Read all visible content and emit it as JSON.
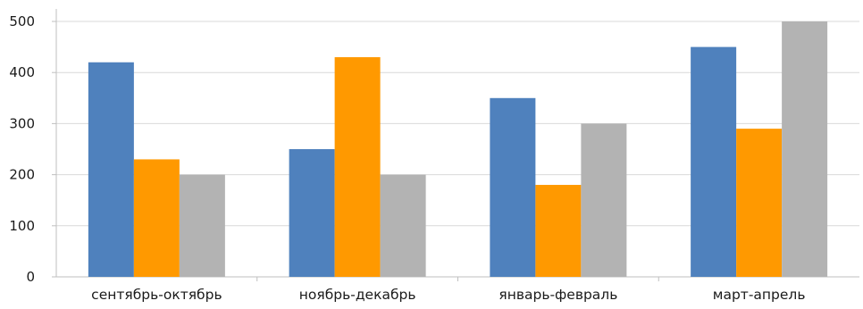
{
  "chart_data": {
    "type": "bar",
    "categories": [
      "сентябрь-октябрь",
      "ноябрь-декабрь",
      "январь-февраль",
      "март-апрель"
    ],
    "series": [
      {
        "values": [
          420,
          250,
          350,
          450
        ],
        "color": "#4f81bd"
      },
      {
        "values": [
          230,
          430,
          180,
          290
        ],
        "color": "#ff9900"
      },
      {
        "values": [
          200,
          200,
          300,
          500
        ],
        "color": "#b3b3b3"
      }
    ],
    "ylim": [
      0,
      500
    ],
    "yticks": [
      0,
      100,
      200,
      300,
      400,
      500
    ],
    "grid": true,
    "legend": "none",
    "title": "",
    "xlabel": "",
    "ylabel": ""
  }
}
